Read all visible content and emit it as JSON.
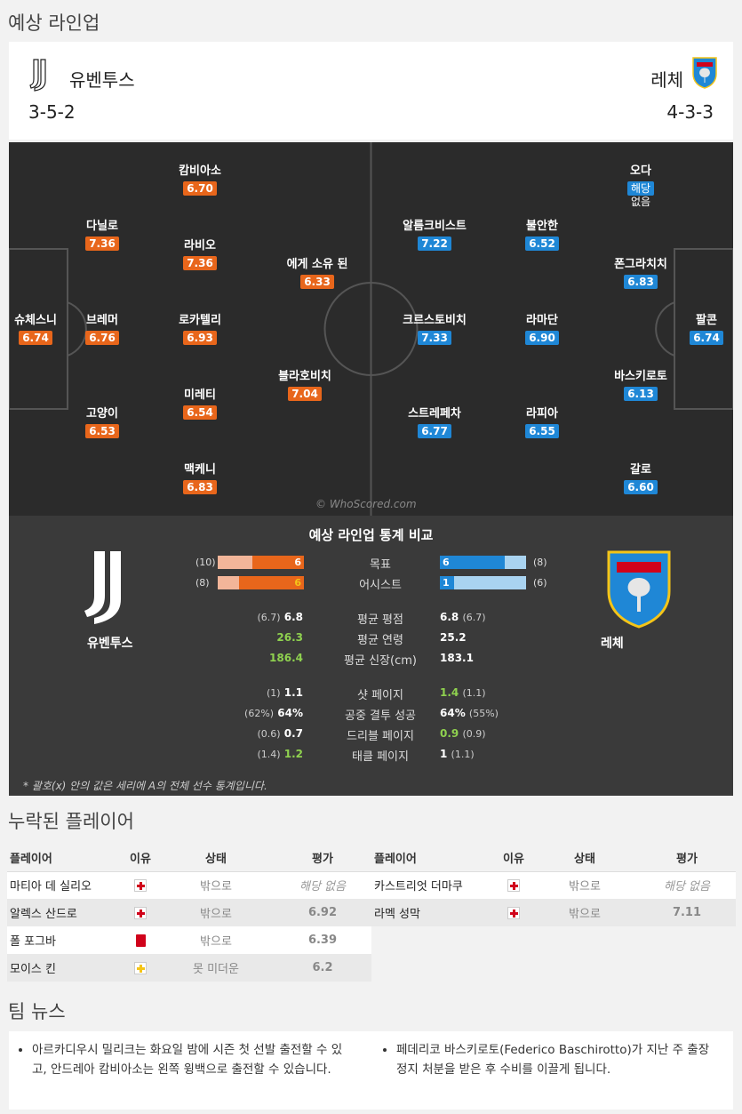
{
  "lineup": {
    "title": "예상 라인업",
    "home": {
      "name": "유벤투스",
      "formation": "3-5-2"
    },
    "away": {
      "name": "레체",
      "formation": "4-3-3"
    }
  },
  "pitch": {
    "home_players": [
      {
        "name": "슈체스니",
        "rating": "6.74"
      },
      {
        "name": "다닐로",
        "rating": "7.36"
      },
      {
        "name": "브레머",
        "rating": "6.76"
      },
      {
        "name": "고양이",
        "rating": "6.53"
      },
      {
        "name": "캄비아소",
        "rating": "6.70"
      },
      {
        "name": "라비오",
        "rating": "7.36"
      },
      {
        "name": "로카텔리",
        "rating": "6.93"
      },
      {
        "name": "미레티",
        "rating": "6.54"
      },
      {
        "name": "맥케니",
        "rating": "6.83"
      },
      {
        "name": "에게 소유 된",
        "rating": "6.33"
      },
      {
        "name": "블라호비치",
        "rating": "7.04"
      }
    ],
    "away_players": [
      {
        "name": "오다",
        "rating": "해당",
        "rating_extra": "없음"
      },
      {
        "name": "알름크비스트",
        "rating": "7.22"
      },
      {
        "name": "불안한",
        "rating": "6.52"
      },
      {
        "name": "폰그라치치",
        "rating": "6.83"
      },
      {
        "name": "크르스토비치",
        "rating": "7.33"
      },
      {
        "name": "라마단",
        "rating": "6.90"
      },
      {
        "name": "팔콘",
        "rating": "6.74"
      },
      {
        "name": "바스키로토",
        "rating": "6.13"
      },
      {
        "name": "스트레페차",
        "rating": "6.77"
      },
      {
        "name": "라피아",
        "rating": "6.55"
      },
      {
        "name": "갈로",
        "rating": "6.60"
      }
    ],
    "watermark": "© WhoScored.com"
  },
  "stats": {
    "title": "예상 라인업 통계 비교",
    "home_name": "유벤투스",
    "away_name": "레체",
    "goals": {
      "label": "목표",
      "home": "6",
      "home_total": "(10)",
      "away": "6",
      "away_total": "(8)",
      "home_frac": 0.6,
      "away_frac": 0.75
    },
    "assists": {
      "label": "어시스트",
      "home": "6",
      "home_total": "(8)",
      "away": "1",
      "away_total": "(6)",
      "home_frac": 0.75,
      "away_frac": 0.17
    },
    "rows1": [
      {
        "label": "평균 평점",
        "home": "6.8",
        "home_sub": "(6.7)",
        "away": "6.8",
        "away_sub": "(6.7)",
        "home_green": false,
        "away_green": false
      },
      {
        "label": "평균 연령",
        "home": "26.3",
        "home_sub": "",
        "away": "25.2",
        "away_sub": "",
        "home_green": true,
        "away_green": false
      },
      {
        "label": "평균 신장(cm)",
        "home": "186.4",
        "home_sub": "",
        "away": "183.1",
        "away_sub": "",
        "home_green": true,
        "away_green": false
      }
    ],
    "rows2": [
      {
        "label": "샷 페이지",
        "home": "1.1",
        "home_sub": "(1)",
        "away": "1.4",
        "away_sub": "(1.1)",
        "home_green": false,
        "away_green": true
      },
      {
        "label": "공중 결투 성공",
        "home": "64%",
        "home_sub": "(62%)",
        "away": "64%",
        "away_sub": "(55%)",
        "home_green": false,
        "away_green": false
      },
      {
        "label": "드리블 페이지",
        "home": "0.7",
        "home_sub": "(0.6)",
        "away": "0.9",
        "away_sub": "(0.9)",
        "home_green": false,
        "away_green": true
      },
      {
        "label": "태클 페이지",
        "home": "1.2",
        "home_sub": "(1.4)",
        "away": "1",
        "away_sub": "(1.1)",
        "home_green": true,
        "away_green": false
      }
    ],
    "footnote": "* 괄호(x) 안의 값은 세리에 A의 전체 선수 통계입니다."
  },
  "missing": {
    "title": "누락된 플레이어",
    "headers": {
      "player": "플레이어",
      "reason": "이유",
      "status": "상태",
      "rating": "평가"
    },
    "home": [
      {
        "player": "마티아 데 실리오",
        "reason": "injury",
        "status": "밖으로",
        "rating": "해당 없음"
      },
      {
        "player": "알렉스 산드로",
        "reason": "injury",
        "status": "밖으로",
        "rating": "6.92"
      },
      {
        "player": "폴 포그바",
        "reason": "red-card",
        "status": "밖으로",
        "rating": "6.39"
      },
      {
        "player": "모이스 킨",
        "reason": "doubtful",
        "status": "못 미더운",
        "rating": "6.2"
      }
    ],
    "away": [
      {
        "player": "카스트리엇 더마쿠",
        "reason": "injury",
        "status": "밖으로",
        "rating": "해당 없음"
      },
      {
        "player": "라멕 성막",
        "reason": "injury",
        "status": "밖으로",
        "rating": "7.11"
      }
    ]
  },
  "news": {
    "title": "팀 뉴스",
    "home": "아르카디우시 밀리크는 화요일 밤에 시즌 첫 선발 출전할 수 있고, 안드레아 캄비아소는 왼쪽 윙백으로 출전할 수 있습니다.",
    "away": "페데리코 바스키로토(Federico Baschirotto)가 지난 주 출장 정지 처분을 받은 후 수비를 이끌게 됩니다."
  },
  "colors": {
    "home": "#e8661b",
    "away": "#1f87d6",
    "pitch": "#2b2b2b"
  }
}
